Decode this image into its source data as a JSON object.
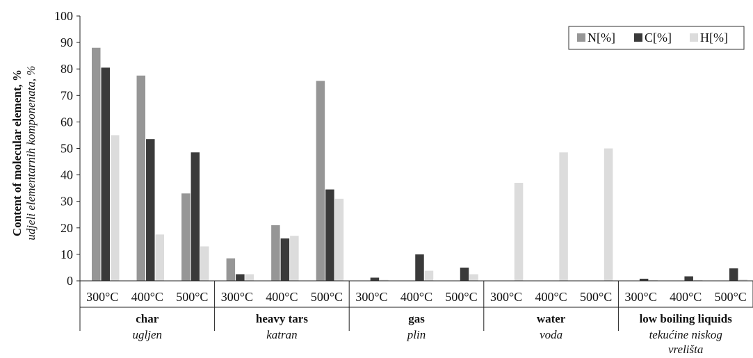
{
  "chart_data": {
    "type": "bar",
    "ylabel": "Content of molecular element, %",
    "ylabel_secondary": "udjeli elementarnih komponenata, %",
    "ylim": [
      0,
      100
    ],
    "yticks": [
      0,
      10,
      20,
      30,
      40,
      50,
      60,
      70,
      80,
      90,
      100
    ],
    "grid": false,
    "legend_position": "top-right",
    "groups": [
      {
        "label": "char",
        "sublabel": "ugljen"
      },
      {
        "label": "heavy tars",
        "sublabel": "katran"
      },
      {
        "label": "gas",
        "sublabel": "plin"
      },
      {
        "label": "water",
        "sublabel": "voda"
      },
      {
        "label": "low boiling liquids",
        "sublabel": "tekućine niskog vrelišta"
      }
    ],
    "temperatures": [
      "300°C",
      "400°C",
      "500°C"
    ],
    "series": [
      {
        "name": "N[%]",
        "color": "#969696",
        "values": [
          88,
          77.5,
          33,
          8.5,
          21,
          75.5,
          0,
          0,
          0,
          0,
          0,
          0,
          0,
          0,
          0
        ]
      },
      {
        "name": "C[%]",
        "color": "#3a3a3a",
        "values": [
          80.5,
          53.5,
          48.5,
          2.5,
          16,
          34.5,
          1.2,
          10,
          5,
          0,
          0,
          0,
          0.8,
          1.7,
          4.7
        ]
      },
      {
        "name": "H[%]",
        "color": "#dcdcdc",
        "values": [
          55,
          17.5,
          13,
          2.5,
          17,
          31,
          0.4,
          3.8,
          2.5,
          37,
          48.5,
          50,
          0.3,
          0.3,
          0.5
        ]
      }
    ]
  }
}
